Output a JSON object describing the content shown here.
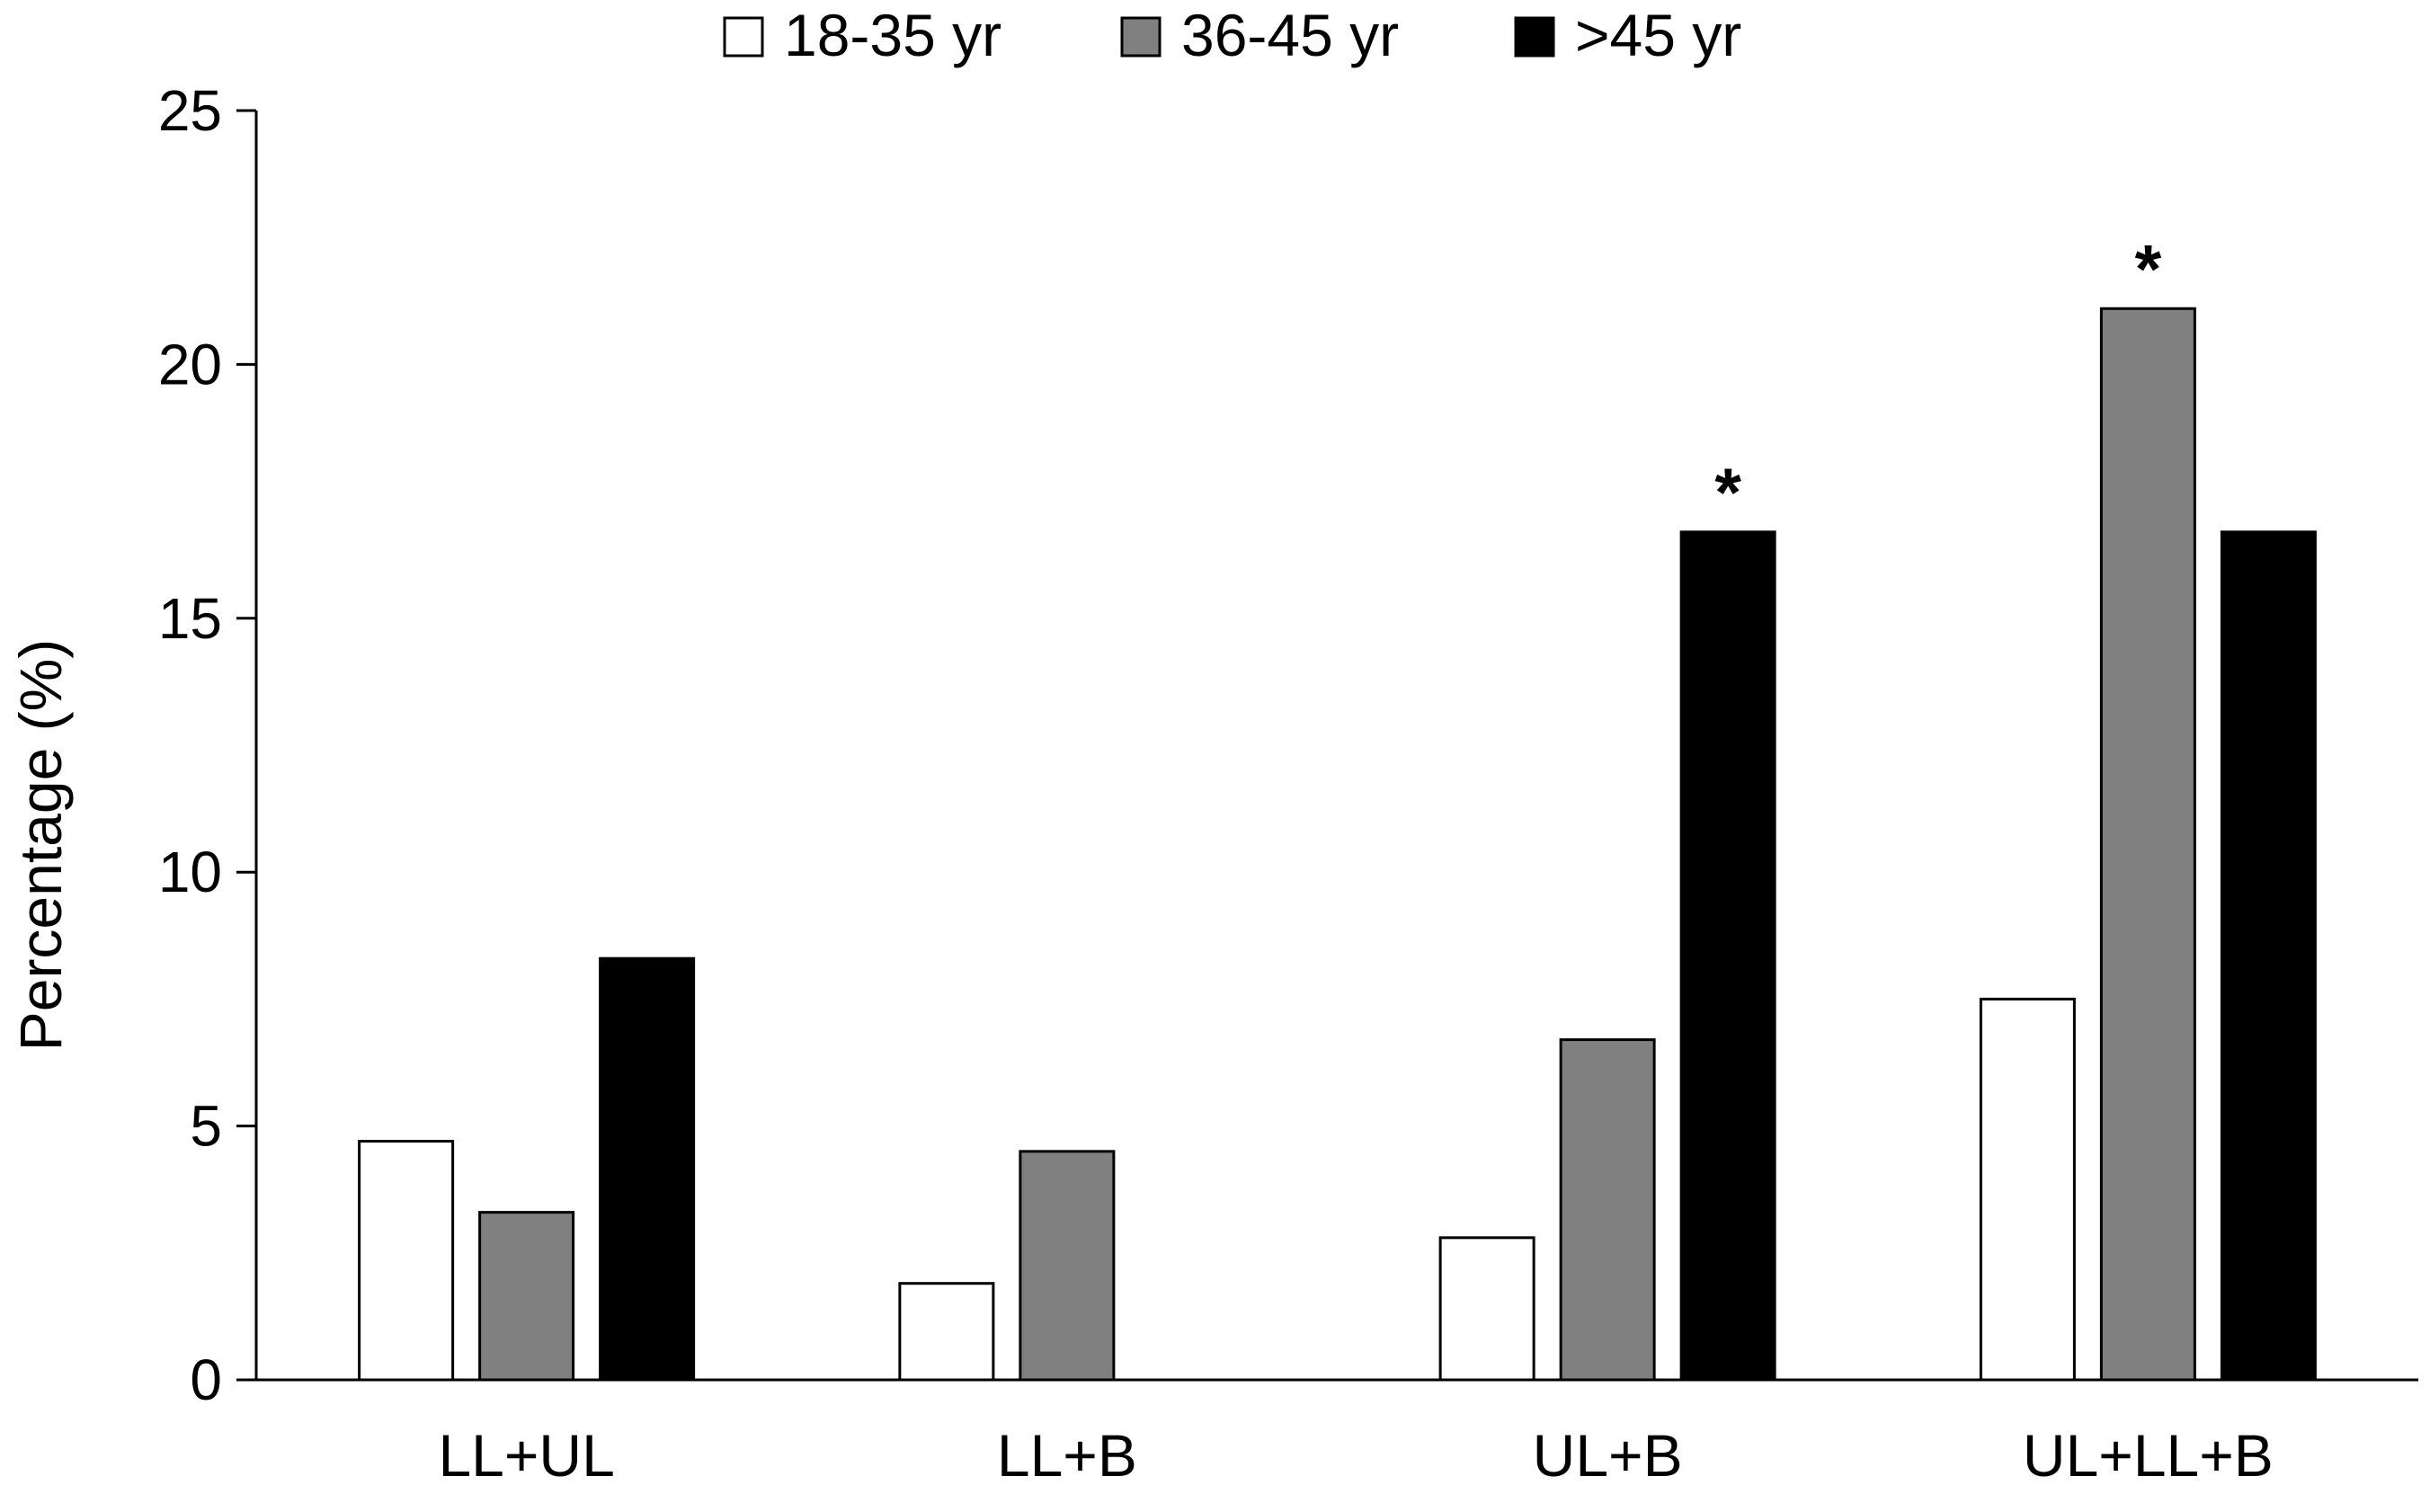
{
  "chart_data": {
    "type": "bar",
    "title": "",
    "xlabel": "",
    "ylabel": "Percentage (%)",
    "ylim": [
      0,
      25
    ],
    "yticks": [
      "0",
      "5",
      "10",
      "15",
      "20",
      "25"
    ],
    "ytick_values": [
      0,
      5,
      10,
      15,
      20,
      25
    ],
    "categories": [
      "LL+UL",
      "LL+B",
      "UL+B",
      "UL+LL+B"
    ],
    "series": [
      {
        "name": "18-35 yr",
        "color": "#ffffff",
        "values": [
          4.7,
          1.9,
          2.8,
          7.5
        ]
      },
      {
        "name": "36-45 yr",
        "color": "#808080",
        "values": [
          3.3,
          4.5,
          6.7,
          21.1
        ]
      },
      {
        "name": ">45 yr",
        "color": "#000000",
        "values": [
          8.3,
          0,
          16.7,
          16.7
        ]
      }
    ],
    "annotations": [
      {
        "text": "*",
        "category": "UL+B",
        "series": ">45 yr"
      },
      {
        "text": "*",
        "category": "UL+LL+B",
        "series": "36-45 yr"
      }
    ],
    "legend_position": "top-center",
    "grid": false
  }
}
